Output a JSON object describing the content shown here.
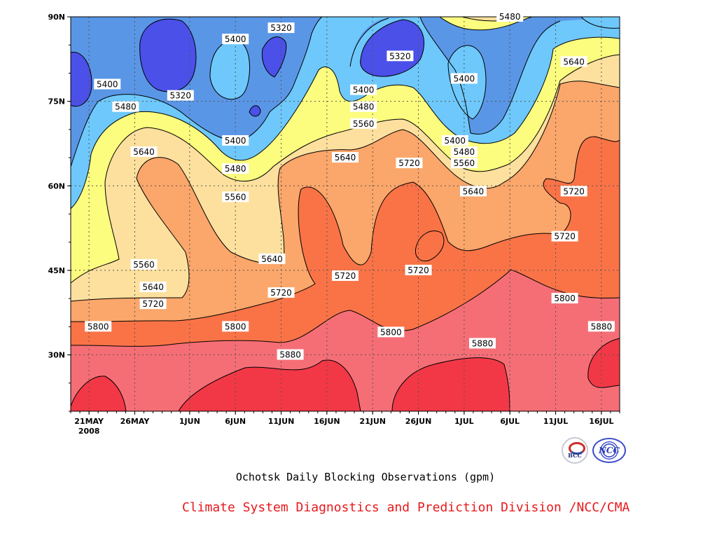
{
  "chart_data": {
    "type": "heatmap",
    "subtype": "time-latitude filled contour",
    "x_ticks": [
      "21MAY",
      "26MAY",
      "1JUN",
      "6JUN",
      "11JUN",
      "16JUN",
      "21JUN",
      "26JUN",
      "1JUL",
      "6JUL",
      "11JUL",
      "16JUL"
    ],
    "x_year_label": "2008",
    "xlim": [
      "2008-05-19",
      "2008-07-18"
    ],
    "y_ticks": [
      "30N",
      "45N",
      "60N",
      "75N",
      "90N"
    ],
    "y_tick_values": [
      30,
      45,
      60,
      75,
      90
    ],
    "ylim": [
      20,
      90
    ],
    "levels": [
      5320,
      5400,
      5480,
      5560,
      5640,
      5720,
      5800,
      5880
    ],
    "fill_colors": [
      "#4a50e8",
      "#5a96e6",
      "#6ec8fb",
      "#fcfc7e",
      "#fde09e",
      "#fba66a",
      "#fa7346",
      "#f56e76",
      "#f23846"
    ],
    "grid": true,
    "contour_labels": [
      {
        "value": 5400,
        "date": "2008-05-23",
        "lat": 78
      },
      {
        "value": 5320,
        "date": "2008-05-31",
        "lat": 76
      },
      {
        "value": 5400,
        "date": "2008-06-06",
        "lat": 86
      },
      {
        "value": 5320,
        "date": "2008-06-11",
        "lat": 88
      },
      {
        "value": 5480,
        "date": "2008-05-25",
        "lat": 74
      },
      {
        "value": 5640,
        "date": "2008-05-27",
        "lat": 66
      },
      {
        "value": 5400,
        "date": "2008-06-06",
        "lat": 68
      },
      {
        "value": 5480,
        "date": "2008-06-06",
        "lat": 63
      },
      {
        "value": 5560,
        "date": "2008-06-06",
        "lat": 58
      },
      {
        "value": 5400,
        "date": "2008-06-20",
        "lat": 77
      },
      {
        "value": 5480,
        "date": "2008-06-20",
        "lat": 74
      },
      {
        "value": 5560,
        "date": "2008-06-20",
        "lat": 71
      },
      {
        "value": 5640,
        "date": "2008-06-18",
        "lat": 65
      },
      {
        "value": 5320,
        "date": "2008-06-24",
        "lat": 83
      },
      {
        "value": 5480,
        "date": "2008-07-06",
        "lat": 90
      },
      {
        "value": 5640,
        "date": "2008-07-13",
        "lat": 82
      },
      {
        "value": 5400,
        "date": "2008-07-01",
        "lat": 79
      },
      {
        "value": 5720,
        "date": "2008-06-25",
        "lat": 64
      },
      {
        "value": 5400,
        "date": "2008-06-30",
        "lat": 68
      },
      {
        "value": 5480,
        "date": "2008-07-01",
        "lat": 66
      },
      {
        "value": 5560,
        "date": "2008-07-01",
        "lat": 64
      },
      {
        "value": 5640,
        "date": "2008-07-02",
        "lat": 59
      },
      {
        "value": 5720,
        "date": "2008-07-13",
        "lat": 59
      },
      {
        "value": 5720,
        "date": "2008-07-12",
        "lat": 51
      },
      {
        "value": 5560,
        "date": "2008-05-27",
        "lat": 46
      },
      {
        "value": 5640,
        "date": "2008-05-28",
        "lat": 42
      },
      {
        "value": 5720,
        "date": "2008-05-28",
        "lat": 39
      },
      {
        "value": 5800,
        "date": "2008-05-22",
        "lat": 35
      },
      {
        "value": 5640,
        "date": "2008-06-10",
        "lat": 47
      },
      {
        "value": 5720,
        "date": "2008-06-11",
        "lat": 41
      },
      {
        "value": 5800,
        "date": "2008-06-06",
        "lat": 35
      },
      {
        "value": 5720,
        "date": "2008-06-18",
        "lat": 44
      },
      {
        "value": 5720,
        "date": "2008-06-26",
        "lat": 45
      },
      {
        "value": 5800,
        "date": "2008-06-23",
        "lat": 34
      },
      {
        "value": 5880,
        "date": "2008-06-12",
        "lat": 30
      },
      {
        "value": 5880,
        "date": "2008-07-03",
        "lat": 32
      },
      {
        "value": 5800,
        "date": "2008-07-12",
        "lat": 40
      },
      {
        "value": 5880,
        "date": "2008-07-16",
        "lat": 35
      }
    ]
  },
  "caption": "Ochotsk Daily Blocking Observations (gpm)",
  "footer": "Climate System Diagnostics and Prediction Division /NCC/CMA",
  "logos": {
    "bcc": "BCC",
    "ncc": "NCC"
  }
}
